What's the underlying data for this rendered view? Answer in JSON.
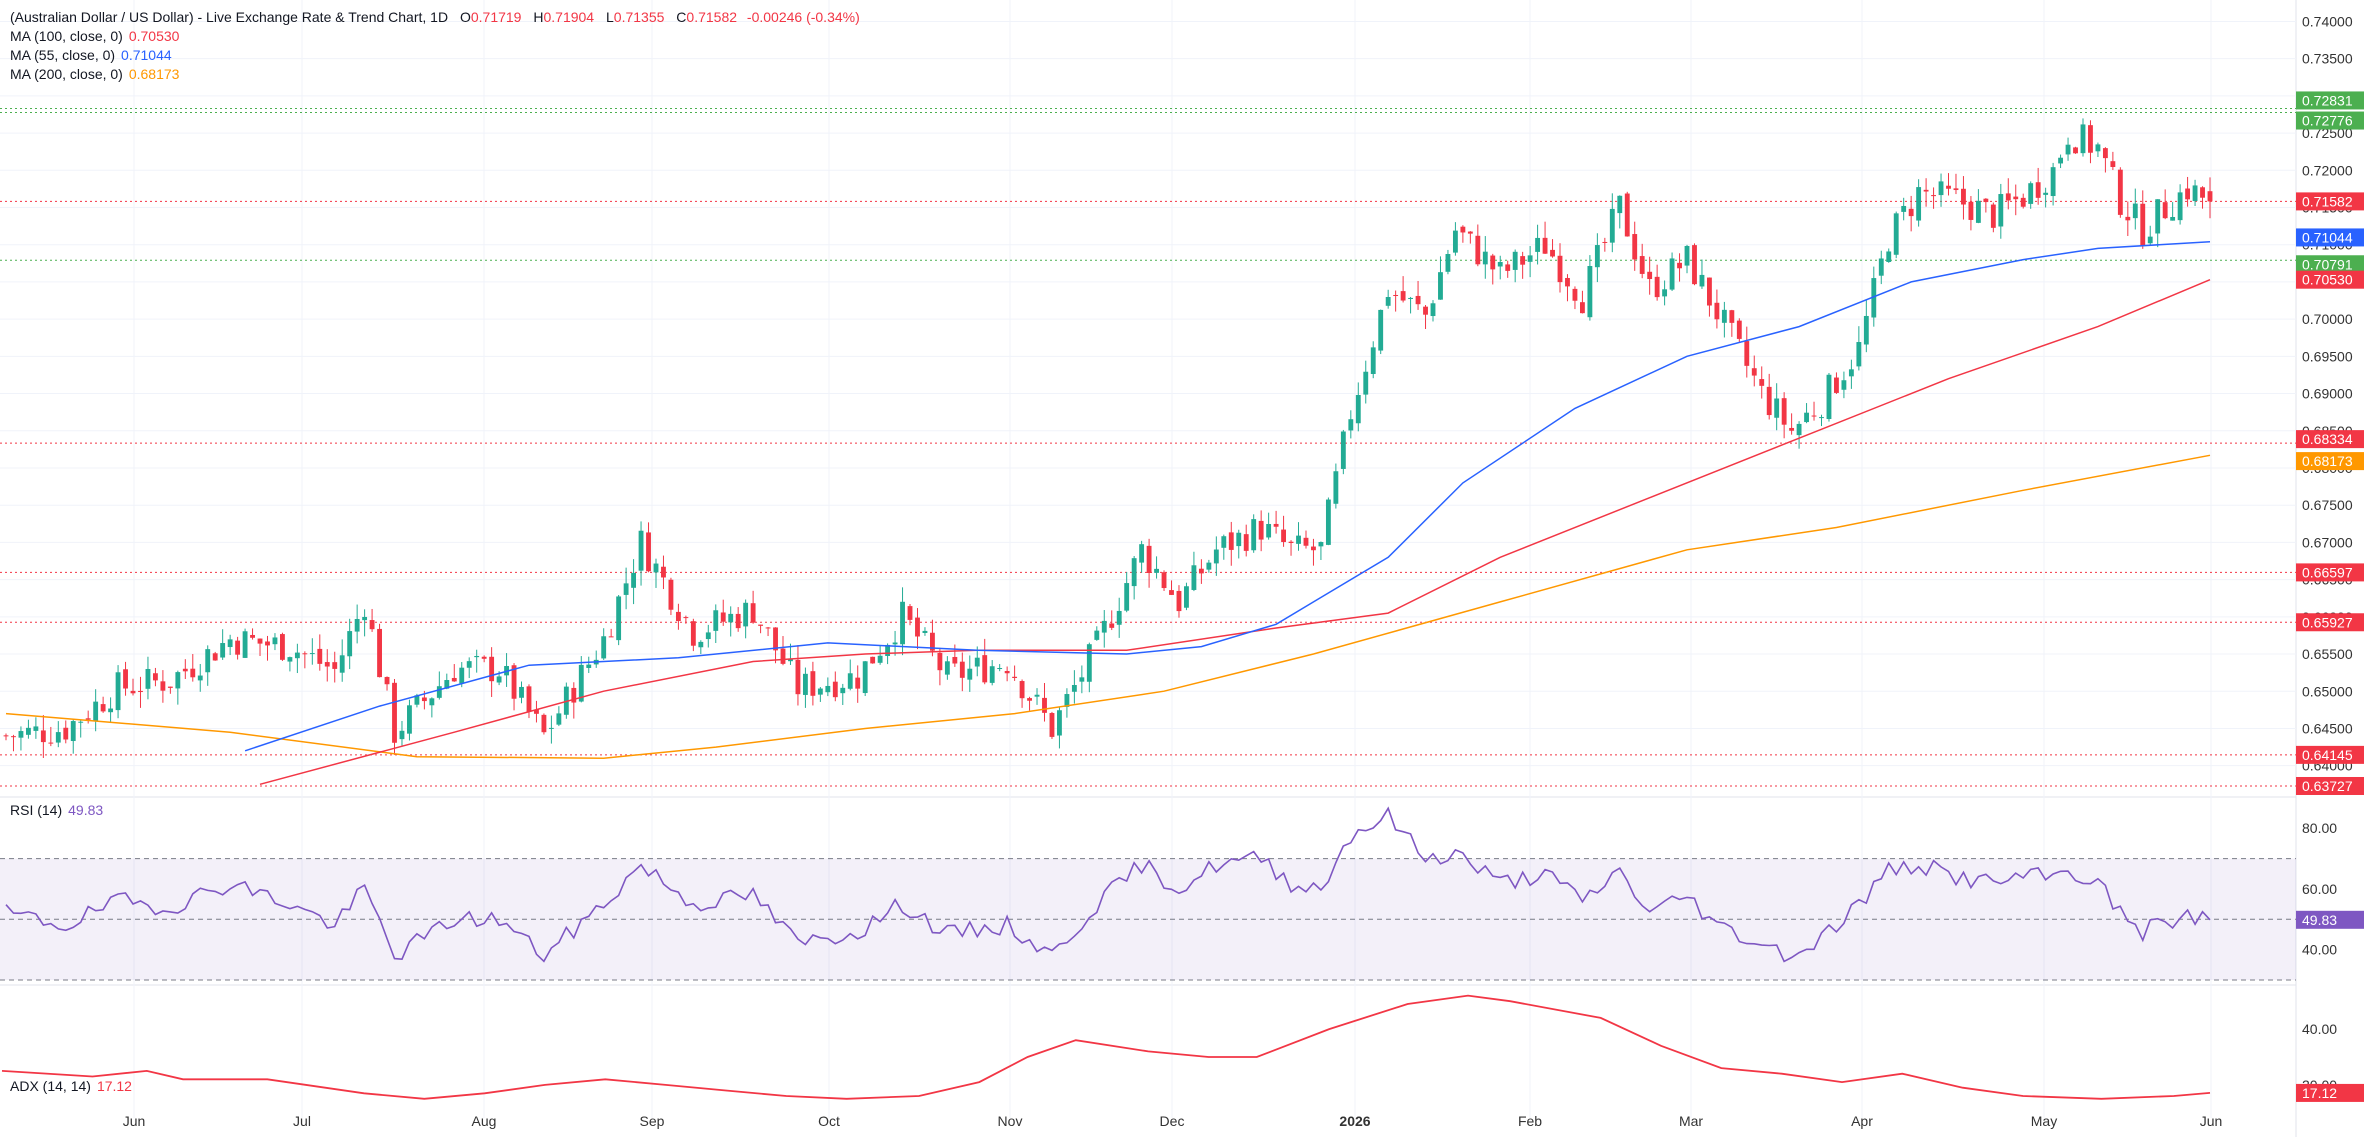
{
  "header": {
    "title": "(Australian Dollar / US Dollar) - Live Exchange Rate & Trend Chart, 1D",
    "open_label": "O",
    "open": "0.71719",
    "high_label": "H",
    "high": "0.71904",
    "low_label": "L",
    "low": "0.71355",
    "close_label": "C",
    "close": "0.71582",
    "change": "-0.00246 (-0.34%)"
  },
  "legends": {
    "ma100": {
      "label": "MA (100, close, 0)",
      "value": "0.70530"
    },
    "ma55": {
      "label": "MA (55, close, 0)",
      "value": "0.71044"
    },
    "ma200": {
      "label": "MA (200, close, 0)",
      "value": "0.68173"
    },
    "rsi": {
      "label": "RSI (14)",
      "value": "49.83"
    },
    "adx": {
      "label": "ADX (14, 14)",
      "value": "17.12"
    }
  },
  "colors": {
    "up": "#22ab94",
    "down": "#f23645",
    "ma55": "#2962ff",
    "ma100": "#f23645",
    "ma200": "#ff9800",
    "rsi": "#7e57c2",
    "adx": "#f23645",
    "green_level": "#4caf50",
    "grid": "#f0f3fa",
    "text": "#131722",
    "axis_text": "#333333"
  },
  "chart_data": [
    {
      "type": "candlestick",
      "title": "(Australian Dollar / US Dollar) - Live Exchange Rate & Trend Chart, 1D",
      "x_tick_labels": [
        "Jun",
        "Jul",
        "Aug",
        "Sep",
        "Oct",
        "Nov",
        "Dec",
        "2026",
        "Feb",
        "Mar",
        "Apr",
        "May",
        "Jun"
      ],
      "y_tick_labels": [
        "0.74000",
        "0.73500",
        "0.73000",
        "0.72500",
        "0.72000",
        "0.71500",
        "0.71000",
        "0.70500",
        "0.70000",
        "0.69500",
        "0.69000",
        "0.68500",
        "0.68000",
        "0.67500",
        "0.67000",
        "0.66500",
        "0.66000",
        "0.65500",
        "0.65000",
        "0.64500",
        "0.64000"
      ],
      "ylim": [
        0.637,
        0.741
      ],
      "anchors": [
        {
          "x": 0,
          "c": 0.644
        },
        {
          "x": 8,
          "c": 0.645
        },
        {
          "x": 15,
          "c": 0.6505
        },
        {
          "x": 22,
          "c": 0.6515
        },
        {
          "x": 30,
          "c": 0.657
        },
        {
          "x": 38,
          "c": 0.656
        },
        {
          "x": 44,
          "c": 0.6528
        },
        {
          "x": 48,
          "c": 0.662
        },
        {
          "x": 52,
          "c": 0.6445
        },
        {
          "x": 60,
          "c": 0.653
        },
        {
          "x": 66,
          "c": 0.653
        },
        {
          "x": 72,
          "c": 0.644
        },
        {
          "x": 80,
          "c": 0.657
        },
        {
          "x": 85,
          "c": 0.67
        },
        {
          "x": 92,
          "c": 0.658
        },
        {
          "x": 100,
          "c": 0.661
        },
        {
          "x": 106,
          "c": 0.6505
        },
        {
          "x": 114,
          "c": 0.652
        },
        {
          "x": 120,
          "c": 0.66
        },
        {
          "x": 126,
          "c": 0.652
        },
        {
          "x": 134,
          "c": 0.654
        },
        {
          "x": 140,
          "c": 0.645
        },
        {
          "x": 146,
          "c": 0.656
        },
        {
          "x": 152,
          "c": 0.669
        },
        {
          "x": 157,
          "c": 0.662
        },
        {
          "x": 162,
          "c": 0.669
        },
        {
          "x": 168,
          "c": 0.672
        },
        {
          "x": 172,
          "c": 0.669
        },
        {
          "x": 176,
          "c": 0.669
        },
        {
          "x": 180,
          "c": 0.6875
        },
        {
          "x": 185,
          "c": 0.704
        },
        {
          "x": 190,
          "c": 0.7005
        },
        {
          "x": 194,
          "c": 0.712
        },
        {
          "x": 200,
          "c": 0.706
        },
        {
          "x": 206,
          "c": 0.71
        },
        {
          "x": 211,
          "c": 0.703
        },
        {
          "x": 216,
          "c": 0.715
        },
        {
          "x": 220,
          "c": 0.704
        },
        {
          "x": 225,
          "c": 0.708
        },
        {
          "x": 229,
          "c": 0.701
        },
        {
          "x": 235,
          "c": 0.69
        },
        {
          "x": 239,
          "c": 0.685
        },
        {
          "x": 243,
          "c": 0.689
        },
        {
          "x": 248,
          "c": 0.696
        },
        {
          "x": 252,
          "c": 0.711
        },
        {
          "x": 256,
          "c": 0.717
        },
        {
          "x": 261,
          "c": 0.716
        },
        {
          "x": 266,
          "c": 0.714
        },
        {
          "x": 270,
          "c": 0.7165
        },
        {
          "x": 274,
          "c": 0.72
        },
        {
          "x": 276,
          "c": 0.725
        },
        {
          "x": 280,
          "c": 0.723
        },
        {
          "x": 283,
          "c": 0.716
        },
        {
          "x": 286,
          "c": 0.712
        },
        {
          "x": 289,
          "c": 0.715
        },
        {
          "x": 292,
          "c": 0.7175
        },
        {
          "x": 295,
          "c": 0.7158
        }
      ],
      "last_candle": {
        "open": 0.71719,
        "high": 0.71904,
        "low": 0.71355,
        "close": 0.71582
      },
      "ma55": [
        [
          32,
          0.642
        ],
        [
          50,
          0.648
        ],
        [
          70,
          0.6535
        ],
        [
          90,
          0.6545
        ],
        [
          110,
          0.6565
        ],
        [
          130,
          0.6555
        ],
        [
          150,
          0.655
        ],
        [
          160,
          0.656
        ],
        [
          170,
          0.659
        ],
        [
          175,
          0.662
        ],
        [
          185,
          0.668
        ],
        [
          195,
          0.678
        ],
        [
          210,
          0.688
        ],
        [
          225,
          0.695
        ],
        [
          240,
          0.699
        ],
        [
          255,
          0.705
        ],
        [
          270,
          0.708
        ],
        [
          280,
          0.7095
        ],
        [
          295,
          0.7104
        ]
      ],
      "ma100": [
        [
          34,
          0.6375
        ],
        [
          60,
          0.6445
        ],
        [
          80,
          0.65
        ],
        [
          100,
          0.654
        ],
        [
          115,
          0.655
        ],
        [
          130,
          0.6555
        ],
        [
          150,
          0.6555
        ],
        [
          170,
          0.6585
        ],
        [
          185,
          0.6605
        ],
        [
          200,
          0.668
        ],
        [
          220,
          0.676
        ],
        [
          240,
          0.684
        ],
        [
          260,
          0.692
        ],
        [
          280,
          0.699
        ],
        [
          295,
          0.7053
        ]
      ],
      "ma200": [
        [
          0,
          0.647
        ],
        [
          30,
          0.6445
        ],
        [
          55,
          0.6412
        ],
        [
          80,
          0.641
        ],
        [
          95,
          0.6425
        ],
        [
          115,
          0.645
        ],
        [
          135,
          0.647
        ],
        [
          155,
          0.65
        ],
        [
          175,
          0.655
        ],
        [
          200,
          0.662
        ],
        [
          225,
          0.669
        ],
        [
          245,
          0.672
        ],
        [
          270,
          0.677
        ],
        [
          295,
          0.6817
        ]
      ],
      "right_axis_labels": [
        {
          "value": 0.72831,
          "text": "0.72831",
          "bg": "#4caf50",
          "line": "green"
        },
        {
          "value": 0.72776,
          "text": "0.72776",
          "bg": "#4caf50",
          "line": "green"
        },
        {
          "value": 0.71582,
          "text": "0.71582",
          "bg": "#f23645",
          "line": "red"
        },
        {
          "value": 0.71044,
          "text": "0.71044",
          "bg": "#2962ff",
          "line": "none"
        },
        {
          "value": 0.70791,
          "text": "0.70791",
          "bg": "#4caf50",
          "line": "green"
        },
        {
          "value": 0.7053,
          "text": "0.70530",
          "bg": "#f23645",
          "line": "none"
        },
        {
          "value": 0.68334,
          "text": "0.68334",
          "bg": "#f23645",
          "line": "red"
        },
        {
          "value": 0.68173,
          "text": "0.68173",
          "bg": "#ff9800",
          "line": "none"
        },
        {
          "value": 0.66597,
          "text": "0.66597",
          "bg": "#f23645",
          "line": "red"
        },
        {
          "value": 0.65927,
          "text": "0.65927",
          "bg": "#f23645",
          "line": "red"
        },
        {
          "value": 0.64145,
          "text": "0.64145",
          "bg": "#f23645",
          "line": "red"
        },
        {
          "value": 0.63727,
          "text": "0.63727",
          "bg": "#f23645",
          "line": "red"
        }
      ]
    },
    {
      "type": "line",
      "title": "RSI (14)",
      "y_tick_labels": [
        "80.00",
        "60.00",
        "40.00"
      ],
      "ylim": [
        30,
        86
      ],
      "band": [
        30,
        70
      ],
      "midline": 50,
      "values": [
        [
          0,
          52
        ],
        [
          8,
          48
        ],
        [
          15,
          56
        ],
        [
          22,
          54
        ],
        [
          30,
          62
        ],
        [
          38,
          55
        ],
        [
          44,
          48
        ],
        [
          48,
          60
        ],
        [
          52,
          38
        ],
        [
          60,
          50
        ],
        [
          66,
          50
        ],
        [
          72,
          38
        ],
        [
          80,
          55
        ],
        [
          85,
          68
        ],
        [
          92,
          55
        ],
        [
          100,
          58
        ],
        [
          106,
          42
        ],
        [
          114,
          46
        ],
        [
          120,
          55
        ],
        [
          126,
          45
        ],
        [
          134,
          48
        ],
        [
          140,
          38
        ],
        [
          146,
          55
        ],
        [
          152,
          68
        ],
        [
          157,
          60
        ],
        [
          162,
          68
        ],
        [
          168,
          70
        ],
        [
          172,
          62
        ],
        [
          176,
          60
        ],
        [
          180,
          78
        ],
        [
          185,
          84
        ],
        [
          190,
          70
        ],
        [
          194,
          72
        ],
        [
          200,
          62
        ],
        [
          206,
          65
        ],
        [
          211,
          56
        ],
        [
          216,
          66
        ],
        [
          220,
          52
        ],
        [
          225,
          58
        ],
        [
          229,
          48
        ],
        [
          235,
          42
        ],
        [
          239,
          38
        ],
        [
          243,
          44
        ],
        [
          248,
          55
        ],
        [
          252,
          66
        ],
        [
          256,
          68
        ],
        [
          261,
          64
        ],
        [
          266,
          62
        ],
        [
          270,
          64
        ],
        [
          274,
          64
        ],
        [
          276,
          66
        ],
        [
          280,
          62
        ],
        [
          283,
          52
        ],
        [
          286,
          46
        ],
        [
          289,
          49
        ],
        [
          292,
          51
        ],
        [
          295,
          49.83
        ]
      ],
      "last_value": "49.83"
    },
    {
      "type": "line",
      "title": "ADX (14, 14)",
      "y_tick_labels": [
        "40.00",
        "20.00"
      ],
      "ylim": [
        11,
        54
      ],
      "values": [
        [
          0,
          25
        ],
        [
          15,
          23
        ],
        [
          24,
          25
        ],
        [
          30,
          22
        ],
        [
          44,
          22
        ],
        [
          60,
          17
        ],
        [
          70,
          15
        ],
        [
          80,
          17
        ],
        [
          90,
          20
        ],
        [
          100,
          22
        ],
        [
          110,
          20
        ],
        [
          120,
          18
        ],
        [
          130,
          16
        ],
        [
          140,
          15
        ],
        [
          152,
          16
        ],
        [
          162,
          21
        ],
        [
          170,
          30
        ],
        [
          178,
          36
        ],
        [
          190,
          32
        ],
        [
          200,
          30
        ],
        [
          208,
          30
        ],
        [
          220,
          40
        ],
        [
          233,
          49
        ],
        [
          243,
          52
        ],
        [
          250,
          50
        ],
        [
          265,
          44
        ],
        [
          275,
          34
        ],
        [
          285,
          26
        ],
        [
          295,
          24
        ],
        [
          305,
          21
        ],
        [
          315,
          24
        ],
        [
          325,
          19
        ],
        [
          335,
          16
        ],
        [
          348,
          15
        ],
        [
          360,
          16
        ],
        [
          366,
          17.12
        ]
      ],
      "last_value": "17.12"
    }
  ]
}
